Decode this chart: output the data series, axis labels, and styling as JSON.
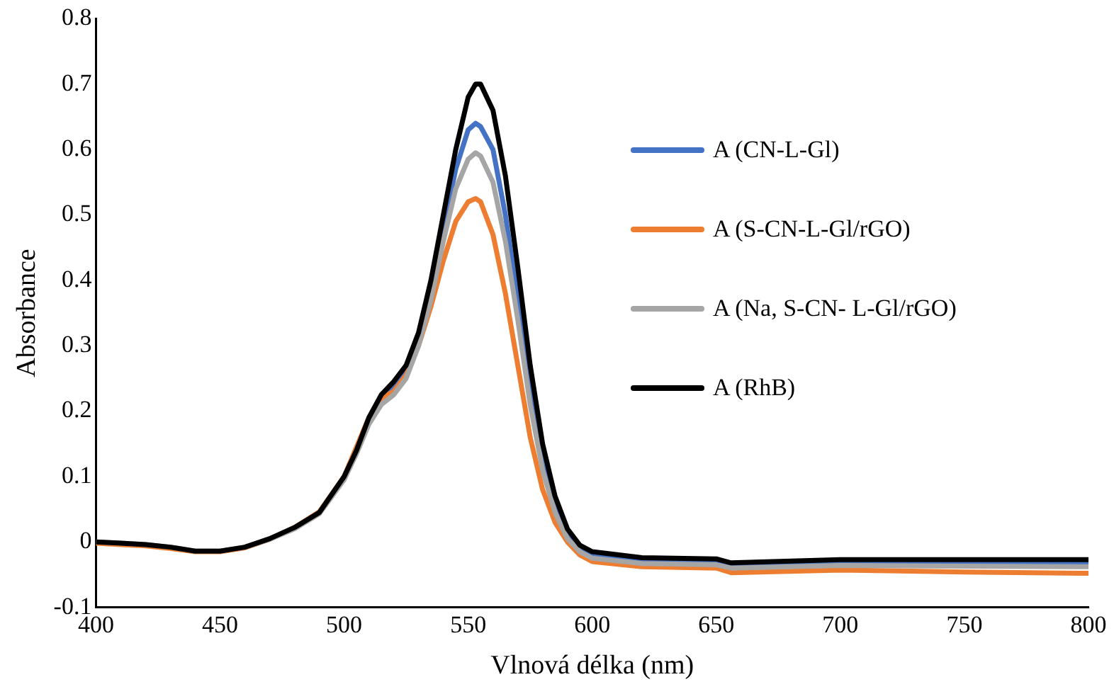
{
  "chart_data": {
    "type": "line",
    "xlabel": "Vlnová délka (nm)",
    "ylabel": "Absorbance",
    "x": [
      400,
      410,
      420,
      430,
      440,
      450,
      460,
      470,
      480,
      490,
      500,
      505,
      510,
      515,
      520,
      525,
      530,
      535,
      540,
      545,
      550,
      553,
      555,
      560,
      565,
      570,
      575,
      580,
      585,
      590,
      595,
      600,
      620,
      650,
      656,
      700,
      750,
      800
    ],
    "series": [
      {
        "name": "A (CN-L-Gl)",
        "color": "#4472c4",
        "values": [
          null,
          null,
          null,
          null,
          null,
          null,
          null,
          null,
          null,
          null,
          null,
          null,
          0.185,
          0.22,
          0.235,
          0.26,
          0.31,
          0.39,
          0.48,
          0.57,
          0.63,
          0.64,
          0.635,
          0.6,
          0.5,
          0.37,
          0.23,
          0.12,
          0.05,
          0.01,
          -0.01,
          -0.02,
          -0.028,
          -0.03,
          -0.035,
          -0.031,
          -0.032,
          -0.033
        ]
      },
      {
        "name": "A (S-CN-L-Gl/rGO)",
        "color": "#ed7d31",
        "values": [
          -0.002,
          -0.004,
          -0.006,
          -0.01,
          -0.015,
          -0.015,
          -0.009,
          0.004,
          0.022,
          0.046,
          0.1,
          0.145,
          0.19,
          0.22,
          0.23,
          0.255,
          0.3,
          0.36,
          0.43,
          0.49,
          0.52,
          0.525,
          0.52,
          0.47,
          0.38,
          0.27,
          0.16,
          0.08,
          0.03,
          0,
          -0.02,
          -0.03,
          -0.038,
          -0.04,
          -0.047,
          -0.043,
          -0.046,
          -0.048
        ]
      },
      {
        "name": "A (Na, S-CN- L-Gl/rGO)",
        "color": "#a5a5a5",
        "values": [
          0,
          -0.002,
          -0.004,
          -0.008,
          -0.014,
          -0.014,
          -0.008,
          0.004,
          0.02,
          0.043,
          0.095,
          0.135,
          0.18,
          0.21,
          0.225,
          0.25,
          0.3,
          0.37,
          0.46,
          0.54,
          0.585,
          0.595,
          0.59,
          0.55,
          0.46,
          0.34,
          0.21,
          0.11,
          0.045,
          0.005,
          -0.015,
          -0.025,
          -0.033,
          -0.035,
          -0.04,
          -0.036,
          -0.037,
          -0.038
        ]
      },
      {
        "name": "A (RhB)",
        "color": "#000000",
        "values": [
          0,
          -0.002,
          -0.004,
          -0.008,
          -0.014,
          -0.014,
          -0.008,
          0.005,
          0.022,
          0.045,
          0.1,
          0.14,
          0.19,
          0.225,
          0.245,
          0.27,
          0.32,
          0.4,
          0.5,
          0.6,
          0.68,
          0.7,
          0.7,
          0.66,
          0.56,
          0.42,
          0.27,
          0.15,
          0.07,
          0.02,
          -0.005,
          -0.015,
          -0.024,
          -0.026,
          -0.032,
          -0.027,
          -0.027,
          -0.027
        ]
      }
    ],
    "xlim": [
      400,
      800
    ],
    "xticks": [
      400,
      450,
      500,
      550,
      600,
      650,
      700,
      750,
      800
    ],
    "ylim": [
      -0.1,
      0.8
    ],
    "yticks": [
      -0.1,
      0,
      0.1,
      0.2,
      0.3,
      0.4,
      0.5,
      0.6,
      0.7,
      0.8
    ],
    "grid": false,
    "legend": "right",
    "marker": "none",
    "line_style": "solid"
  }
}
